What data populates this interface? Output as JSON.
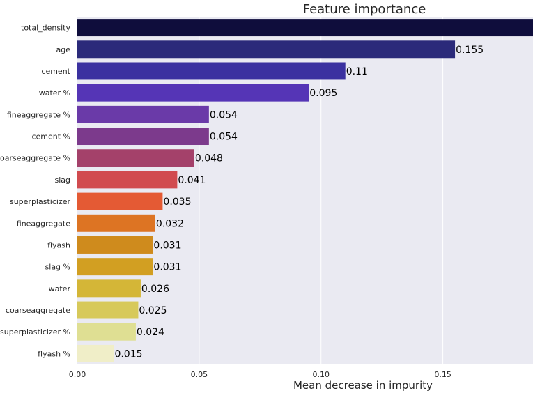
{
  "chart_data": {
    "type": "bar",
    "orientation": "horizontal",
    "title": "Feature importance",
    "xlabel": "Mean decrease in impurity",
    "ylabel": "",
    "xlim": [
      0,
      0.187
    ],
    "xticks": [
      "0.00",
      "0.05",
      "0.10",
      "0.15"
    ],
    "grid": true,
    "categories": [
      "total_density",
      "age",
      "cement",
      "water %",
      "fineaggregate %",
      "cement %",
      "coarseaggregate %",
      "slag",
      "superplasticizer",
      "fineaggregate",
      "flyash",
      "slag %",
      "water",
      "coarseaggregate",
      "superplasticizer %",
      "flyash %"
    ],
    "values": [
      0.187,
      0.155,
      0.11,
      0.095,
      0.054,
      0.054,
      0.048,
      0.041,
      0.035,
      0.032,
      0.031,
      0.031,
      0.026,
      0.025,
      0.024,
      0.015
    ],
    "value_labels": [
      "",
      "0.155",
      "0.11",
      "0.095",
      "0.054",
      "0.054",
      "0.048",
      "0.041",
      "0.035",
      "0.032",
      "0.031",
      "0.031",
      "0.026",
      "0.025",
      "0.024",
      "0.015"
    ],
    "colors": [
      "#0f0d3c",
      "#2b2a7a",
      "#3b31a0",
      "#5535b6",
      "#6a3aa8",
      "#7c3a8c",
      "#a4416a",
      "#d14b4f",
      "#e45a34",
      "#dd7423",
      "#cf8b1d",
      "#d29f22",
      "#d4b637",
      "#d7c95a",
      "#dfdf93",
      "#f0eec8"
    ],
    "plot_background": "#eaeaf2"
  }
}
